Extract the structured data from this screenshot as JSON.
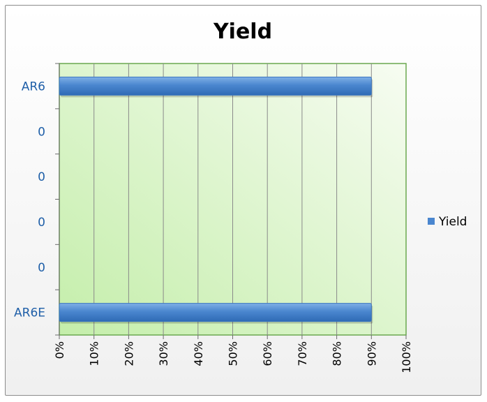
{
  "chart_data": {
    "type": "bar",
    "orientation": "horizontal",
    "title": "Yield",
    "categories": [
      "AR6",
      "0",
      "0",
      "0",
      "0",
      "AR6E"
    ],
    "series": [
      {
        "name": "Yield",
        "values": [
          0.9,
          0,
          0,
          0,
          0,
          0.9
        ]
      }
    ],
    "x_ticks": [
      "0%",
      "10%",
      "20%",
      "30%",
      "40%",
      "50%",
      "60%",
      "70%",
      "80%",
      "90%",
      "100%"
    ],
    "xlim": [
      0,
      1
    ],
    "grid": "vertical",
    "legend": "right",
    "colors": {
      "bar": "#4a86cf",
      "plot_bg_top": "#f7fcf2",
      "plot_bg_bottom": "#c9f0b3",
      "plot_border": "#6aa84f"
    }
  }
}
